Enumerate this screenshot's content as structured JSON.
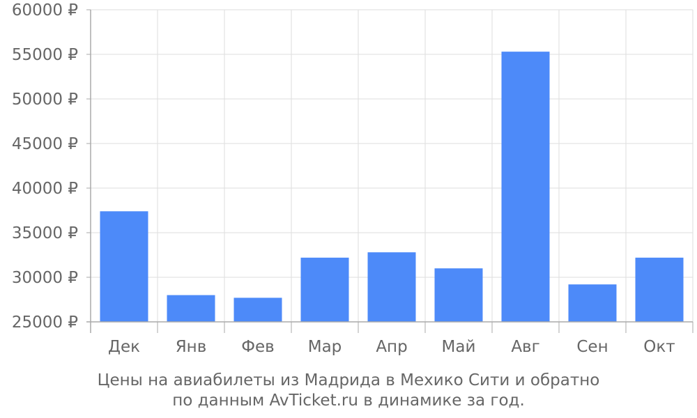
{
  "chart_data": {
    "type": "bar",
    "categories": [
      "Дек",
      "Янв",
      "Фев",
      "Мар",
      "Апр",
      "Май",
      "Авг",
      "Сен",
      "Окт"
    ],
    "values": [
      37400,
      28000,
      27700,
      32200,
      32800,
      31000,
      55300,
      29200,
      32200
    ],
    "ylim": [
      25000,
      60000
    ],
    "yticks": [
      25000,
      30000,
      35000,
      40000,
      45000,
      50000,
      55000,
      60000
    ],
    "ytick_labels": [
      "25000 ₽",
      "30000 ₽",
      "35000 ₽",
      "40000 ₽",
      "45000 ₽",
      "50000 ₽",
      "55000 ₽",
      "60000 ₽"
    ],
    "grid": true,
    "bar_color": "#4d8af9",
    "grid_color": "#dddddd",
    "axis_color": "#aaaaaa",
    "text_color": "#666666"
  },
  "caption": {
    "line1": "Цены на авиабилеты из Мадрида в Мехико Сити и обратно",
    "line2": "по данным AvTicket.ru в динамике за год."
  }
}
